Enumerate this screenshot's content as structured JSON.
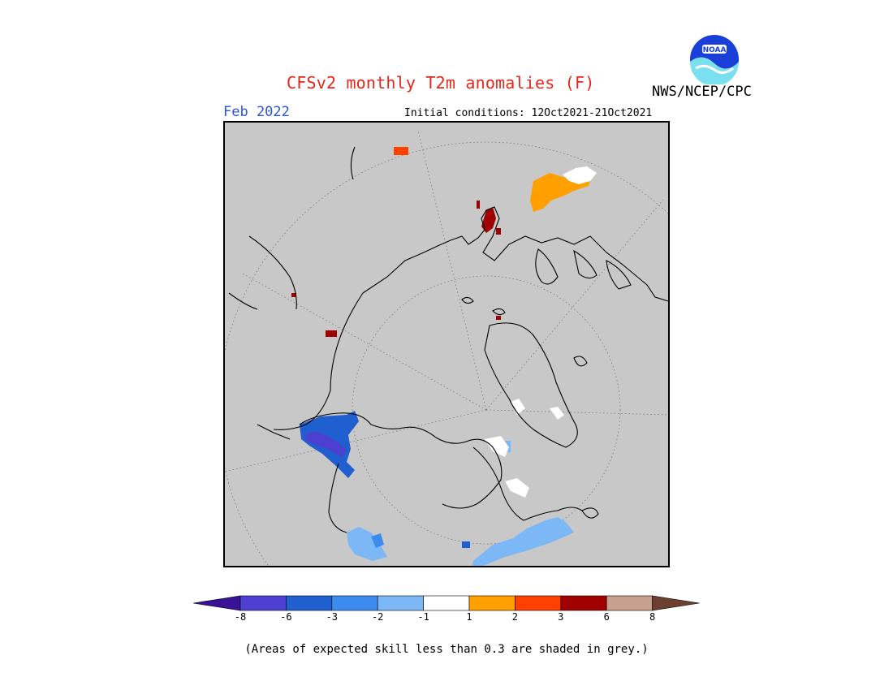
{
  "title": "CFSv2 monthly T2m anomalies (F)",
  "agency": "NWS/NCEP/CPC",
  "logo_text": "NOAA",
  "forecast_month": "Feb 2022",
  "initial_conditions": "Initial conditions: 12Oct2021-21Oct2021",
  "footnote": "(Areas of expected skill less than 0.3 are shaded in grey.)",
  "colors": {
    "title": "#e8251b",
    "month": "#2a52e0",
    "map_background": "#c8c8c8",
    "coastline": "#000000"
  },
  "legend": {
    "ticks": [
      "-8",
      "-6",
      "-3",
      "-2",
      "-1",
      "1",
      "2",
      "3",
      "6",
      "8"
    ],
    "bins": [
      {
        "label": "< -8",
        "color": "#3a129a"
      },
      {
        "label": "-8 to -6",
        "color": "#4d3fd0"
      },
      {
        "label": "-6 to -3",
        "color": "#1f5fd0"
      },
      {
        "label": "-3 to -2",
        "color": "#3c8cf0"
      },
      {
        "label": "-2 to -1",
        "color": "#7db8f6"
      },
      {
        "label": "-1 to 1",
        "color": "#ffffff"
      },
      {
        "label": "1 to 2",
        "color": "#ffa000"
      },
      {
        "label": "2 to 3",
        "color": "#ff4000"
      },
      {
        "label": "3 to 6",
        "color": "#a00000"
      },
      {
        "label": "6 to 8",
        "color": "#c8a090"
      },
      {
        "label": "> 8",
        "color": "#6b4030"
      }
    ]
  },
  "anomaly_regions": [
    {
      "name": "alaska-cold",
      "category": "-6 to -3"
    },
    {
      "name": "alaska-core-cold",
      "category": "-8 to -6"
    },
    {
      "name": "us-east-cool",
      "category": "-2 to -1"
    },
    {
      "name": "us-pacific-cool",
      "category": "-2 to -1"
    },
    {
      "name": "hudson-cool",
      "category": "-2 to -1"
    },
    {
      "name": "eastern-europe-warm",
      "category": "1 to 2"
    },
    {
      "name": "siberia-warm",
      "category": "2 to 3"
    },
    {
      "name": "scandinavia-hot",
      "category": "3 to 6"
    }
  ]
}
